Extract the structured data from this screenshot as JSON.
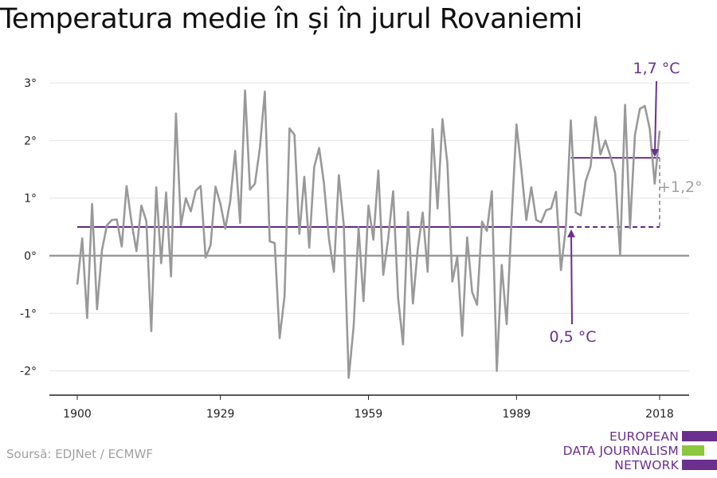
{
  "header": {
    "title": "Temperatura medie în și în jurul Rovaniemi"
  },
  "footer": {
    "source": "Soursă: EDJNet / ECMWF"
  },
  "logo": {
    "lines": [
      "EUROPEAN",
      "DATA JOURNALISM",
      "NETWORK"
    ],
    "colors": [
      "#6a2f8f",
      "#8dc63f",
      "#6a2f8f"
    ]
  },
  "colors": {
    "series": "#999999",
    "baseline": "#5b1f7e",
    "recent": "#6a2f8f",
    "annotation": "#6a2f8f",
    "delta": "#a0a0a0",
    "zero": "#999999"
  },
  "chart_data": {
    "type": "line",
    "title": "Temperatura medie în și în jurul Rovaniemi",
    "xlabel": "",
    "ylabel": "",
    "xlim": [
      1900,
      2018
    ],
    "ylim": [
      -2.4,
      3.2
    ],
    "x_ticks": [
      1900,
      1929,
      1959,
      1989,
      2018
    ],
    "x_tick_labels": [
      "1900",
      "1929",
      "1959",
      "1989",
      "2018"
    ],
    "y_ticks": [
      -2,
      -1,
      0,
      1,
      2,
      3
    ],
    "y_tick_labels": [
      "-2°",
      "-1°",
      "0°",
      "1°",
      "2°",
      "3°"
    ],
    "grid": "horizontal",
    "series": [
      {
        "x": [
          1900,
          1901,
          1902,
          1903,
          1904,
          1905,
          1906,
          1907,
          1908,
          1909,
          1910,
          1911,
          1912,
          1913,
          1914,
          1915,
          1916,
          1917,
          1918,
          1919,
          1920,
          1921,
          1922,
          1923,
          1924,
          1925,
          1926,
          1927,
          1928,
          1929,
          1930,
          1931,
          1932,
          1933,
          1934,
          1935,
          1936,
          1937,
          1938,
          1939,
          1940,
          1941,
          1942,
          1943,
          1944,
          1945,
          1946,
          1947,
          1948,
          1949,
          1950,
          1951,
          1952,
          1953,
          1954,
          1955,
          1956,
          1957,
          1958,
          1959,
          1960,
          1961,
          1962,
          1963,
          1964,
          1965,
          1966,
          1967,
          1968,
          1969,
          1970,
          1971,
          1972,
          1973,
          1974,
          1975,
          1976,
          1977,
          1978,
          1979,
          1980,
          1981,
          1982,
          1983,
          1984,
          1985,
          1986,
          1987,
          1988,
          1989,
          1990,
          1991,
          1992,
          1993,
          1994,
          1995,
          1996,
          1997,
          1998,
          1999,
          2000,
          2001,
          2002,
          2003,
          2004,
          2005,
          2006,
          2007,
          2008,
          2009,
          2010,
          2011,
          2012,
          2013,
          2014,
          2015,
          2016,
          2017,
          2018
        ],
        "values": [
          -0.5,
          0.3,
          -1.08,
          0.9,
          -0.93,
          0.1,
          0.53,
          0.62,
          0.63,
          0.16,
          1.21,
          0.58,
          0.08,
          0.87,
          0.6,
          -1.31,
          1.19,
          -0.13,
          1.1,
          -0.36,
          2.47,
          0.53,
          1.0,
          0.77,
          1.13,
          1.21,
          -0.03,
          0.18,
          1.2,
          0.9,
          0.47,
          0.95,
          1.82,
          0.57,
          2.87,
          1.15,
          1.25,
          1.87,
          2.85,
          0.25,
          0.22,
          -1.43,
          -0.7,
          2.21,
          2.1,
          0.38,
          1.37,
          0.14,
          1.54,
          1.87,
          1.25,
          0.29,
          -0.28,
          1.4,
          0.54,
          -2.12,
          -1.23,
          0.49,
          -0.79,
          0.87,
          0.28,
          1.48,
          -0.33,
          0.3,
          1.12,
          -0.73,
          -1.54,
          0.76,
          -0.83,
          0.12,
          0.75,
          -0.28,
          2.2,
          0.82,
          2.37,
          1.6,
          -0.45,
          -0.02,
          -1.39,
          0.32,
          -0.63,
          -0.85,
          0.59,
          0.43,
          1.12,
          -2.0,
          -0.16,
          -1.19,
          0.64,
          2.28,
          1.49,
          0.62,
          1.19,
          0.62,
          0.58,
          0.79,
          0.82,
          1.11,
          -0.25,
          0.5,
          2.35,
          0.75,
          0.7,
          1.29,
          1.55,
          2.41,
          1.76,
          2.0,
          1.73,
          1.43,
          0.01,
          2.62,
          0.48,
          2.1,
          2.55,
          2.6,
          2.2,
          1.25,
          2.17
        ]
      }
    ],
    "reference_lines": [
      {
        "value": 0.5,
        "from": 1900,
        "to": 2018,
        "label": "0,5 °C"
      },
      {
        "value": 1.7,
        "from": 2000,
        "to": 2018,
        "label": "1,7 °C"
      }
    ],
    "annotations": [
      {
        "text": "1,7 °C"
      },
      {
        "text": "0,5 °C"
      },
      {
        "text": "+1,2°"
      }
    ]
  }
}
